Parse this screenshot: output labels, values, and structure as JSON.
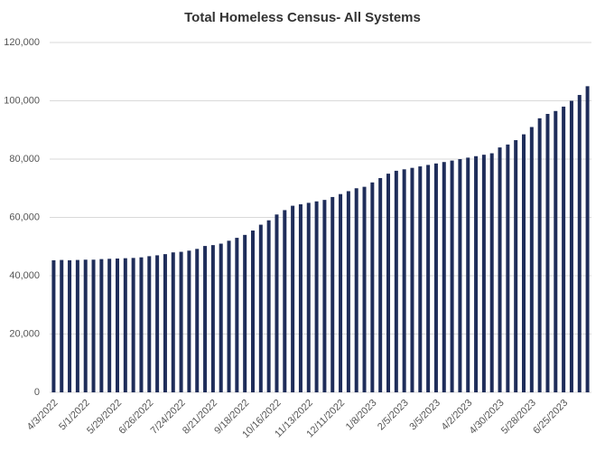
{
  "chart_data": {
    "type": "bar",
    "title": "Total Homeless Census- All Systems",
    "categories": [
      "4/3/2022",
      null,
      null,
      null,
      "5/1/2022",
      null,
      null,
      null,
      "5/29/2022",
      null,
      null,
      null,
      "6/26/2022",
      null,
      null,
      null,
      "7/24/2022",
      null,
      null,
      null,
      "8/21/2022",
      null,
      null,
      null,
      "9/18/2022",
      null,
      null,
      null,
      "10/16/2022",
      null,
      null,
      null,
      "11/13/2022",
      null,
      null,
      null,
      "12/11/2022",
      null,
      null,
      null,
      "1/8/2023",
      null,
      null,
      null,
      "2/5/2023",
      null,
      null,
      null,
      "3/5/2023",
      null,
      null,
      null,
      "4/2/2023",
      null,
      null,
      null,
      "4/30/2023",
      null,
      null,
      null,
      "5/28/2023",
      null,
      null,
      null,
      "6/25/2023",
      null,
      null,
      null
    ],
    "values": [
      45300,
      45400,
      45300,
      45400,
      45500,
      45500,
      45700,
      45800,
      45900,
      46000,
      46100,
      46300,
      46700,
      47000,
      47400,
      48000,
      48200,
      48600,
      49200,
      50200,
      50500,
      51000,
      52000,
      53000,
      54000,
      55500,
      57500,
      59000,
      61000,
      62500,
      64000,
      64500,
      65000,
      65500,
      66000,
      67000,
      68000,
      69000,
      70000,
      70500,
      72000,
      73500,
      75000,
      76000,
      76500,
      77000,
      77500,
      78000,
      78500,
      79000,
      79500,
      80000,
      80500,
      81000,
      81500,
      82000,
      84000,
      85000,
      86500,
      88500,
      91000,
      94000,
      95500,
      96500,
      98000,
      100000,
      102000,
      105000
    ],
    "color": "#1f2d5a",
    "ylim": [
      0,
      120000
    ],
    "yticks": [
      0,
      {
        "value": 20000,
        "label": "20,000"
      },
      {
        "value": 40000,
        "label": "40,000"
      },
      {
        "value": 60000,
        "label": "60,000"
      },
      {
        "value": 80000,
        "label": "80,000"
      },
      {
        "value": 100000,
        "label": "100,000"
      },
      {
        "value": 120000,
        "label": "120,000"
      }
    ],
    "grid": true
  }
}
